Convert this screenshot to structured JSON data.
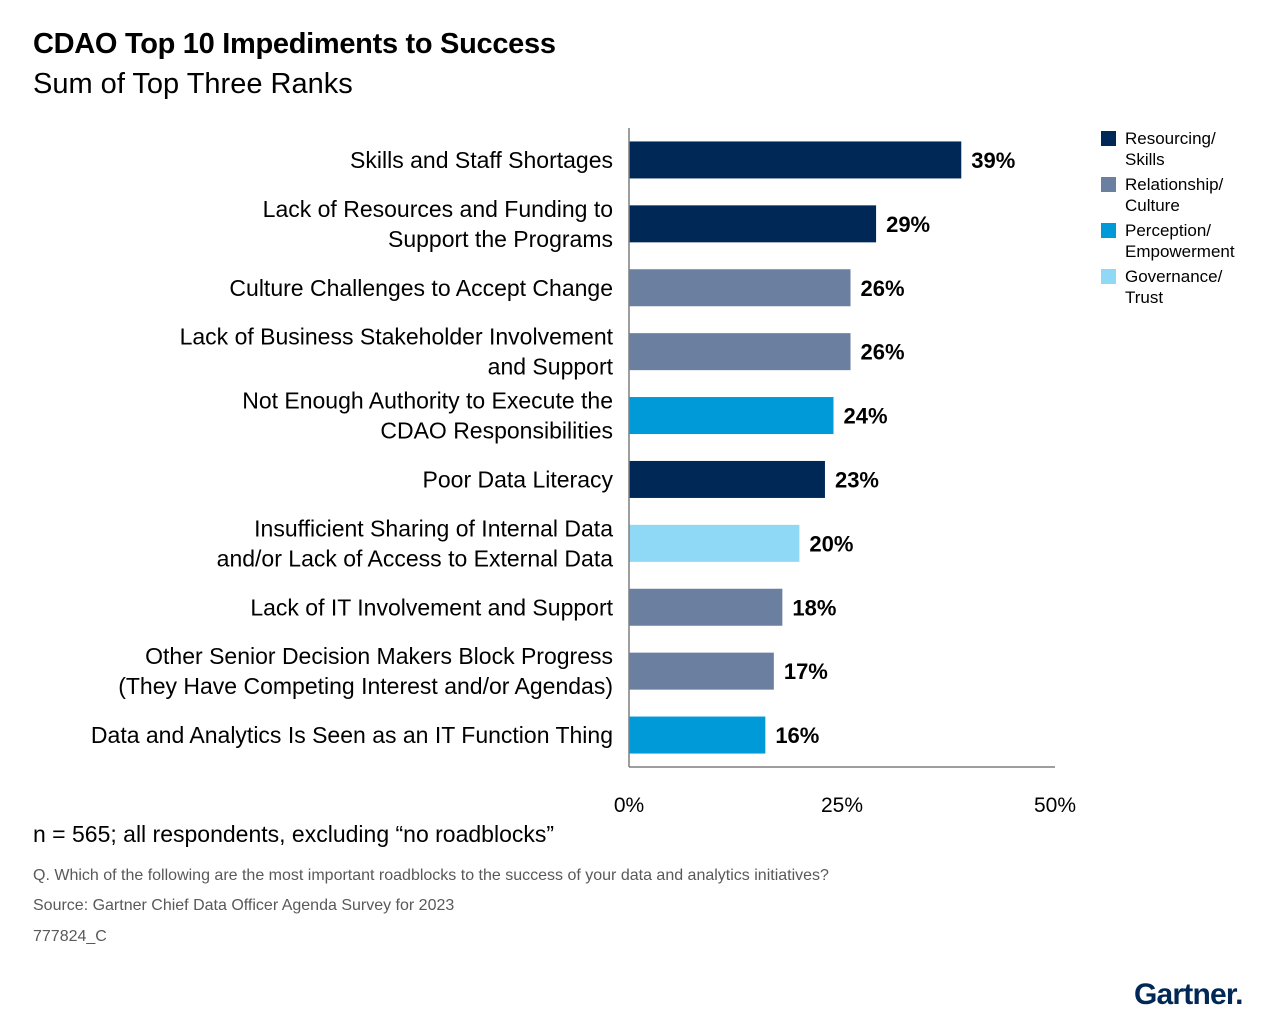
{
  "chart_data": {
    "type": "bar",
    "orientation": "horizontal",
    "title": "CDAO Top 10 Impediments to Success",
    "subtitle": "Sum of Top Three Ranks",
    "categories": [
      [
        "Skills and Staff Shortages"
      ],
      [
        "Lack of Resources and Funding to",
        "Support the Programs"
      ],
      [
        "Culture Challenges to Accept Change"
      ],
      [
        "Lack of Business Stakeholder Involvement",
        "and Support"
      ],
      [
        "Not Enough Authority to Execute the",
        "CDAO Responsibilities"
      ],
      [
        "Poor Data Literacy"
      ],
      [
        "Insufficient Sharing of Internal Data",
        "and/or Lack of Access to External Data"
      ],
      [
        "Lack of IT Involvement and Support"
      ],
      [
        "Other Senior Decision Makers Block Progress",
        "(They Have Competing Interest and/or Agendas)"
      ],
      [
        "Data and Analytics Is Seen as an IT Function Thing"
      ]
    ],
    "values": [
      39,
      29,
      26,
      26,
      24,
      23,
      20,
      18,
      17,
      16
    ],
    "value_labels": [
      "39%",
      "29%",
      "26%",
      "26%",
      "24%",
      "23%",
      "20%",
      "18%",
      "17%",
      "16%"
    ],
    "groups": [
      0,
      0,
      1,
      1,
      2,
      0,
      3,
      1,
      1,
      2
    ],
    "xlim": [
      0,
      50
    ],
    "xticks": [
      0,
      25,
      50
    ],
    "xtick_labels": [
      "0%",
      "25%",
      "50%"
    ],
    "grid": false,
    "legend_position": "top-right",
    "legend": [
      {
        "label": [
          "Resourcing/",
          "Skills"
        ],
        "color": "#002856"
      },
      {
        "label": [
          "Relationship/",
          "Culture"
        ],
        "color": "#6b7fa0"
      },
      {
        "label": [
          "Perception/",
          "Empowerment"
        ],
        "color": "#009ad8"
      },
      {
        "label": [
          "Governance/",
          "Trust"
        ],
        "color": "#8fd8f6"
      }
    ]
  },
  "note": "n = 565; all respondents, excluding “no roadblocks”",
  "question": "Q. Which of the following are the most important roadblocks to the success of your data and analytics initiatives?",
  "source": "Source: Gartner Chief Data Officer Agenda Survey for 2023",
  "code": "777824_C",
  "logo": "Gartner."
}
